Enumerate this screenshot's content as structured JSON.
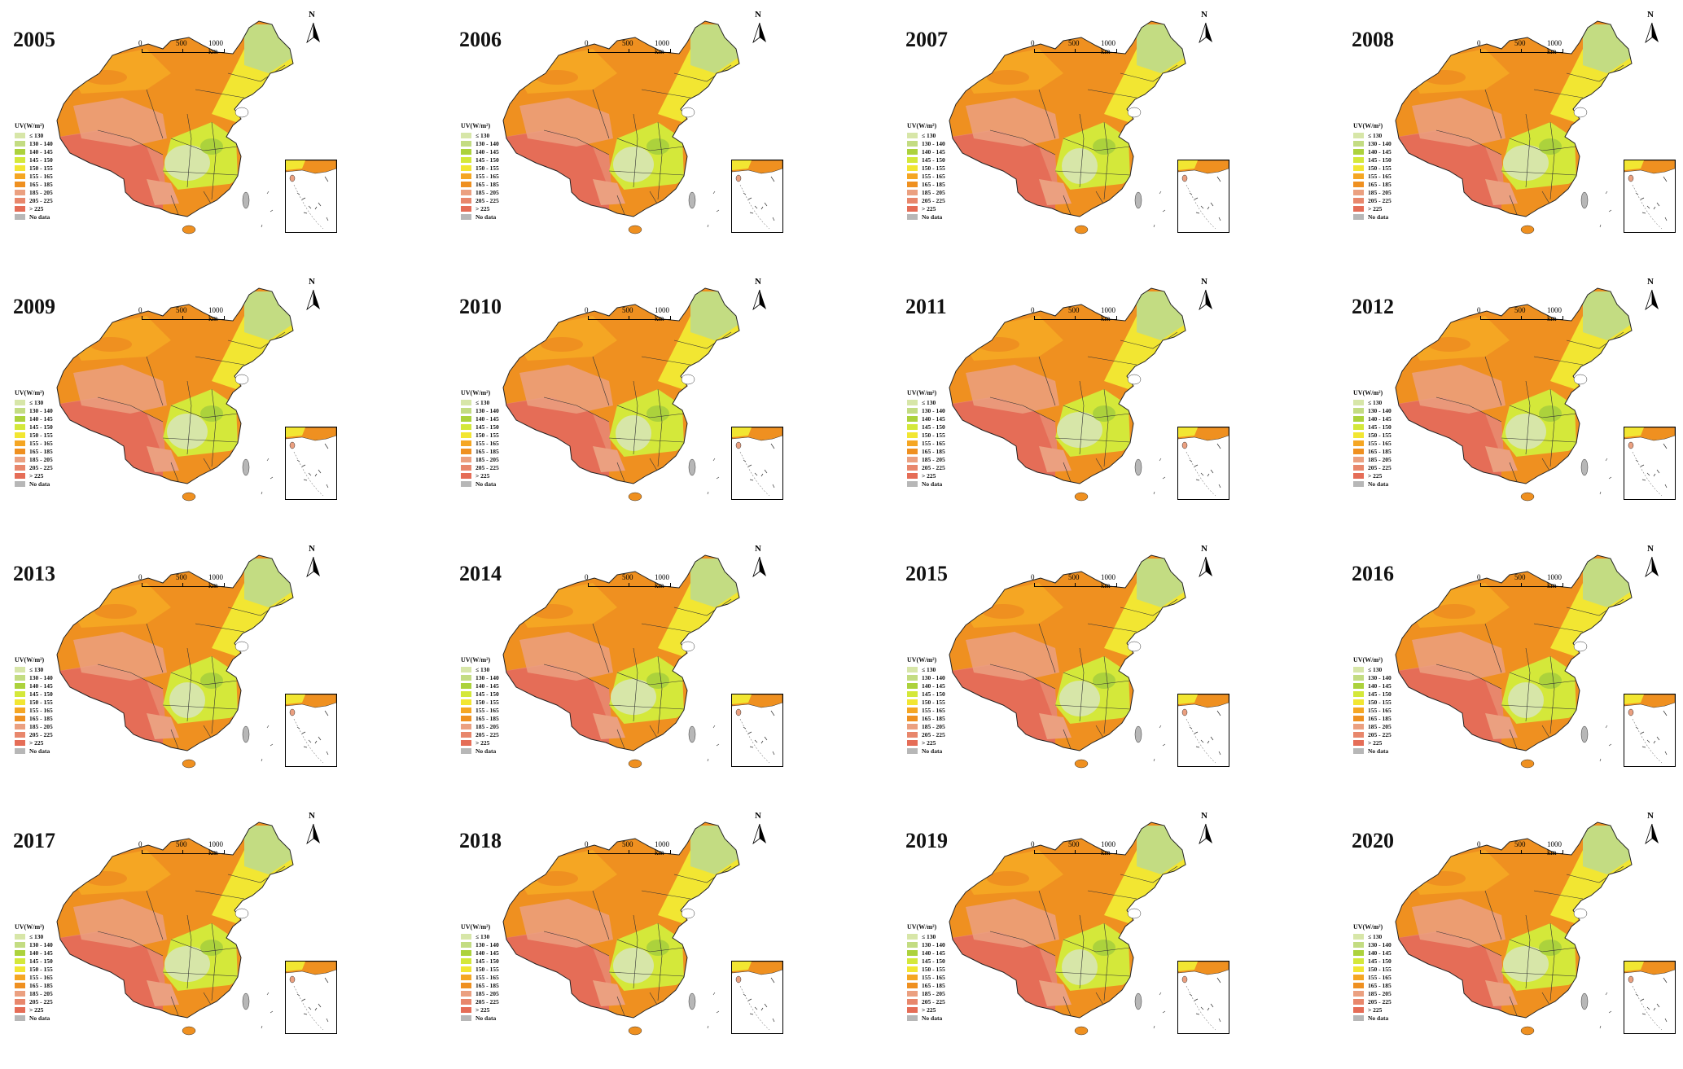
{
  "legend": {
    "title": "UV(W/m²)",
    "classes": [
      {
        "label": "≤ 130",
        "color": "#d7e6a8"
      },
      {
        "label": "130 - 140",
        "color": "#c3dc82"
      },
      {
        "label": "140 - 145",
        "color": "#acd23c"
      },
      {
        "label": "145 - 150",
        "color": "#d4e83a"
      },
      {
        "label": "150 - 155",
        "color": "#f2e632"
      },
      {
        "label": "155 - 165",
        "color": "#f5a623"
      },
      {
        "label": "165 - 185",
        "color": "#ef9020"
      },
      {
        "label": "185 - 205",
        "color": "#eba080"
      },
      {
        "label": "205 - 225",
        "color": "#e8876c"
      },
      {
        "label": "> 225",
        "color": "#e56d57"
      },
      {
        "label": "No data",
        "color": "#b7b7b7"
      }
    ]
  },
  "north_label": "N",
  "scale_labels": [
    "0",
    "500",
    "1000 km"
  ],
  "panels": [
    {
      "year": "2005"
    },
    {
      "year": "2006"
    },
    {
      "year": "2007"
    },
    {
      "year": "2008"
    },
    {
      "year": "2009"
    },
    {
      "year": "2010"
    },
    {
      "year": "2011"
    },
    {
      "year": "2012"
    },
    {
      "year": "2013"
    },
    {
      "year": "2014"
    },
    {
      "year": "2015"
    },
    {
      "year": "2016"
    },
    {
      "year": "2017"
    },
    {
      "year": "2018"
    },
    {
      "year": "2019"
    },
    {
      "year": "2020"
    }
  ]
}
